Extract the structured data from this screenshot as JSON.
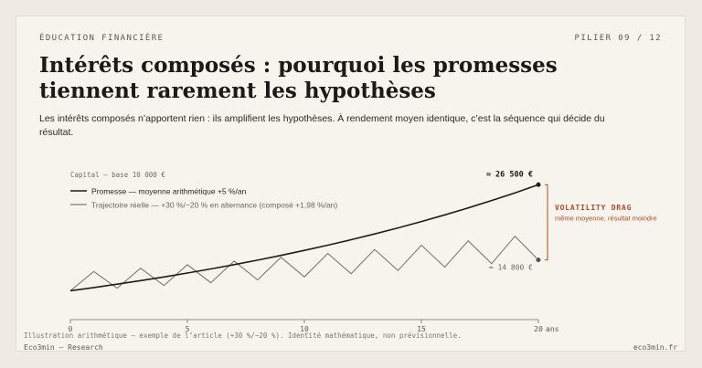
{
  "header": {
    "kicker": "ÉDUCATION FINANCIÈRE",
    "pillar": "PILIER 09 / 12"
  },
  "title": "Intérêts composés : pourquoi les promesses tiennent rarement les hypothèses",
  "lede": "Les intérêts composés n’apportent rien : ils amplifient les hypothèses. À rendement moyen identique, c’est la séquence qui décide du résultat.",
  "chart_data": {
    "type": "line",
    "title": "Capital — base 10 000 €",
    "x_unit": "ans",
    "x_ticks": [
      0,
      5,
      10,
      15,
      20
    ],
    "xlim": [
      0,
      20
    ],
    "ylim": [
      5500,
      27000
    ],
    "grid": false,
    "legend_placement": "top-left",
    "series": [
      {
        "name": "Promesse — moyenne arithmétique +5 %/an",
        "color": "#1f1d1a",
        "x": [
          0,
          1,
          2,
          3,
          4,
          5,
          6,
          7,
          8,
          9,
          10,
          11,
          12,
          13,
          14,
          15,
          16,
          17,
          18,
          19,
          20
        ],
        "values": [
          10000,
          10500,
          11025,
          11576,
          12155,
          12763,
          13401,
          14071,
          14775,
          15513,
          16289,
          17103,
          17959,
          18856,
          19799,
          20789,
          21829,
          22920,
          24066,
          25270,
          26533
        ]
      },
      {
        "name": "Trajectoire réelle — +30 %/−20 % en alternance (composé +1,98 %/an)",
        "color": "#7d7a74",
        "x": [
          0,
          1,
          2,
          3,
          4,
          5,
          6,
          7,
          8,
          9,
          10,
          11,
          12,
          13,
          14,
          15,
          16,
          17,
          18,
          19,
          20
        ],
        "values": [
          10000,
          13000,
          10400,
          13520,
          10816,
          14061,
          11249,
          14623,
          11699,
          15208,
          12167,
          15817,
          12653,
          16449,
          13159,
          17107,
          13686,
          17791,
          14233,
          18503,
          14802
        ]
      }
    ],
    "annotations": {
      "promise_end": "≈ 26 500 €",
      "real_end": "≈ 14 800 €",
      "drag_title": "VOLATILITY DRAG",
      "drag_subtitle": "même moyenne, résultat moindre",
      "accent_color": "#b5472a"
    }
  },
  "footer": {
    "note": "Illustration arithmétique — exemple de l’article (+30 %/−20 %). Identité mathématique, non prévisionnelle.",
    "brand": "Eco3min — Research",
    "url": "eco3min.fr"
  }
}
